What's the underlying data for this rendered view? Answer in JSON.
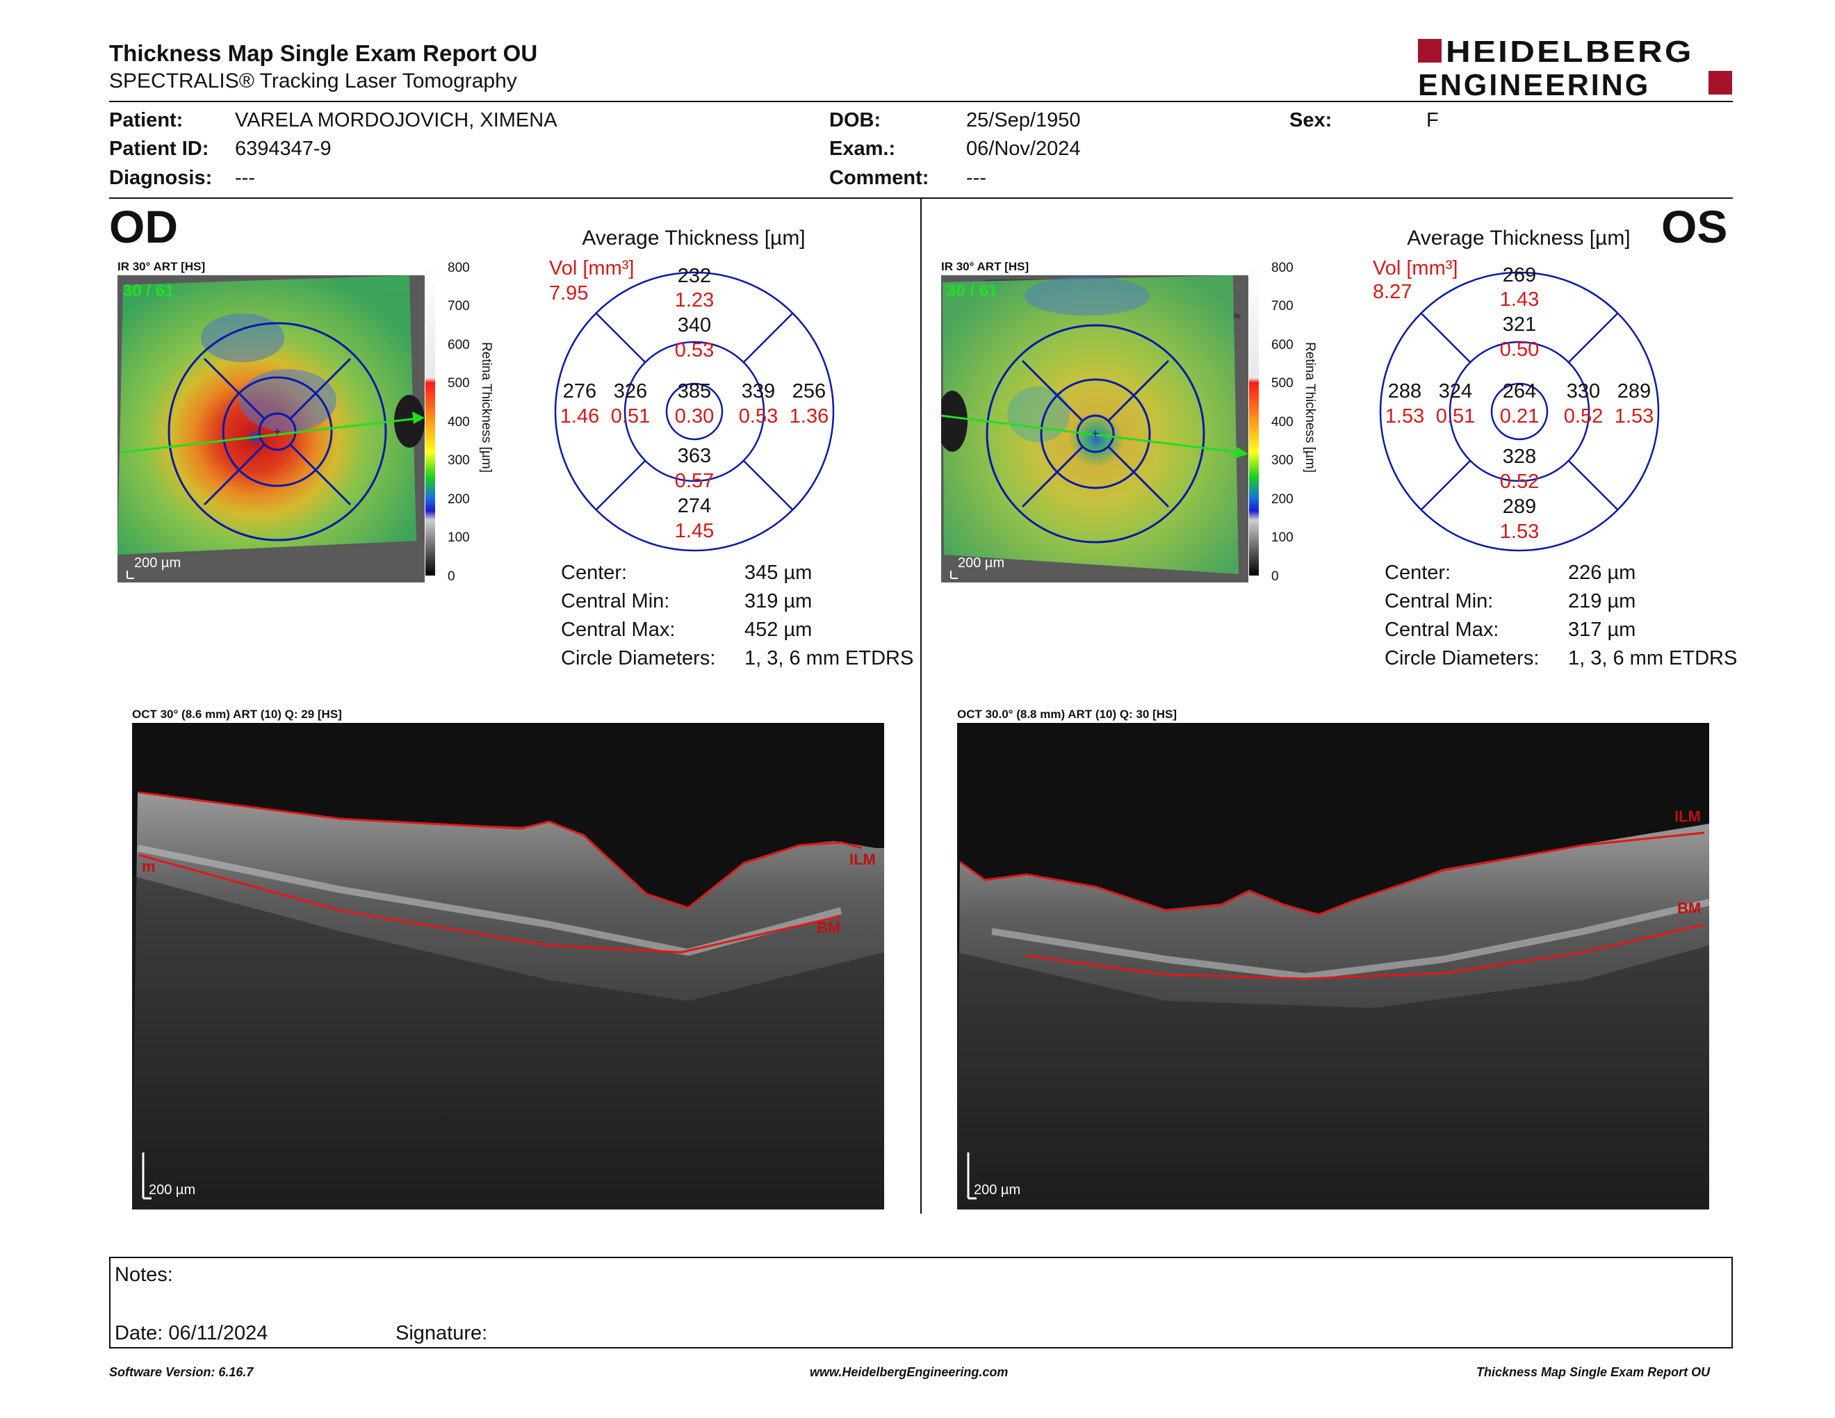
{
  "report": {
    "title": "Thickness Map Single Exam Report OU",
    "subtitle": "SPECTRALIS® Tracking Laser Tomography",
    "logo_line1": "HEIDELBERG",
    "logo_line2": "ENGINEERING"
  },
  "patient": {
    "patient_label": "Patient:",
    "patient_value": "VARELA MORDOJOVICH, XIMENA",
    "id_label": "Patient ID:",
    "id_value": "6394347-9",
    "diagnosis_label": "Diagnosis:",
    "diagnosis_value": "---",
    "dob_label": "DOB:",
    "dob_value": "25/Sep/1950",
    "exam_label": "Exam.:",
    "exam_value": "06/Nov/2024",
    "comment_label": "Comment:",
    "comment_value": "---",
    "sex_label": "Sex:",
    "sex_value": "F"
  },
  "od": {
    "eye": "OD",
    "ir_label": "IR 30° ART [HS]",
    "frame_count": "30 / 61",
    "scale_label": "200 µm",
    "colorbar_ticks": [
      "800",
      "700",
      "600",
      "500",
      "400",
      "300",
      "200",
      "100",
      "0"
    ],
    "colorbar_title": "Retina Thickness [µm]",
    "avg_title": "Average Thickness [µm]",
    "vol_label": "Vol [mm³]",
    "vol_value": "7.95",
    "grid": {
      "center_t": "385",
      "center_v": "0.30",
      "inner_sup_t": "340",
      "inner_sup_v": "0.53",
      "inner_inf_t": "363",
      "inner_inf_v": "0.57",
      "inner_nas_t": "339",
      "inner_nas_v": "0.53",
      "inner_tem_t": "326",
      "inner_tem_v": "0.51",
      "outer_sup_t": "232",
      "outer_sup_v": "1.23",
      "outer_inf_t": "274",
      "outer_inf_v": "1.45",
      "outer_nas_t": "256",
      "outer_nas_v": "1.36",
      "outer_tem_t": "276",
      "outer_tem_v": "1.46"
    },
    "stats": [
      {
        "label": "Center:",
        "value": "345 µm"
      },
      {
        "label": "Central Min:",
        "value": "319 µm"
      },
      {
        "label": "Central Max:",
        "value": "452 µm"
      },
      {
        "label": "Circle Diameters:",
        "value": "1, 3, 6 mm ETDRS"
      }
    ],
    "oct_label": "OCT 30° (8.6 mm) ART (10) Q: 29 [HS]",
    "oct_scale": "200 µm",
    "ilm": "ILM",
    "bm": "BM",
    "edge_mark": "m"
  },
  "os": {
    "eye": "OS",
    "ir_label": "IR 30° ART [HS]",
    "frame_count": "30 / 61",
    "scale_label": "200 µm",
    "colorbar_ticks": [
      "800",
      "700",
      "600",
      "500",
      "400",
      "300",
      "200",
      "100",
      "0"
    ],
    "colorbar_title": "Retina Thickness [µm]",
    "avg_title": "Average Thickness [µm]",
    "vol_label": "Vol [mm³]",
    "vol_value": "8.27",
    "grid": {
      "center_t": "264",
      "center_v": "0.21",
      "inner_sup_t": "321",
      "inner_sup_v": "0.50",
      "inner_inf_t": "328",
      "inner_inf_v": "0.52",
      "inner_nas_t": "324",
      "inner_nas_v": "0.51",
      "inner_tem_t": "330",
      "inner_tem_v": "0.52",
      "outer_sup_t": "269",
      "outer_sup_v": "1.43",
      "outer_inf_t": "289",
      "outer_inf_v": "1.53",
      "outer_nas_t": "288",
      "outer_nas_v": "1.53",
      "outer_tem_t": "289",
      "outer_tem_v": "1.53"
    },
    "stats": [
      {
        "label": "Center:",
        "value": "226 µm"
      },
      {
        "label": "Central Min:",
        "value": "219 µm"
      },
      {
        "label": "Central Max:",
        "value": "317 µm"
      },
      {
        "label": "Circle Diameters:",
        "value": "1, 3, 6 mm ETDRS"
      }
    ],
    "oct_label": "OCT 30.0° (8.8 mm) ART (10) Q: 30 [HS]",
    "oct_scale": "200 µm",
    "ilm": "ILM",
    "bm": "BM"
  },
  "notes": {
    "notes_label": "Notes:",
    "date_label": "Date: 06/11/2024",
    "signature_label": "Signature:"
  },
  "footer": {
    "software": "Software Version: 6.16.7",
    "website": "www.HeidelbergEngineering.com",
    "report_name": "Thickness Map Single Exam Report OU"
  },
  "colors": {
    "thickness_text": "#111111",
    "volume_text": "#d81818",
    "grid_lines": "#0a1aa8",
    "logo_red": "#a4122b",
    "segmentation_line": "#e01818"
  }
}
